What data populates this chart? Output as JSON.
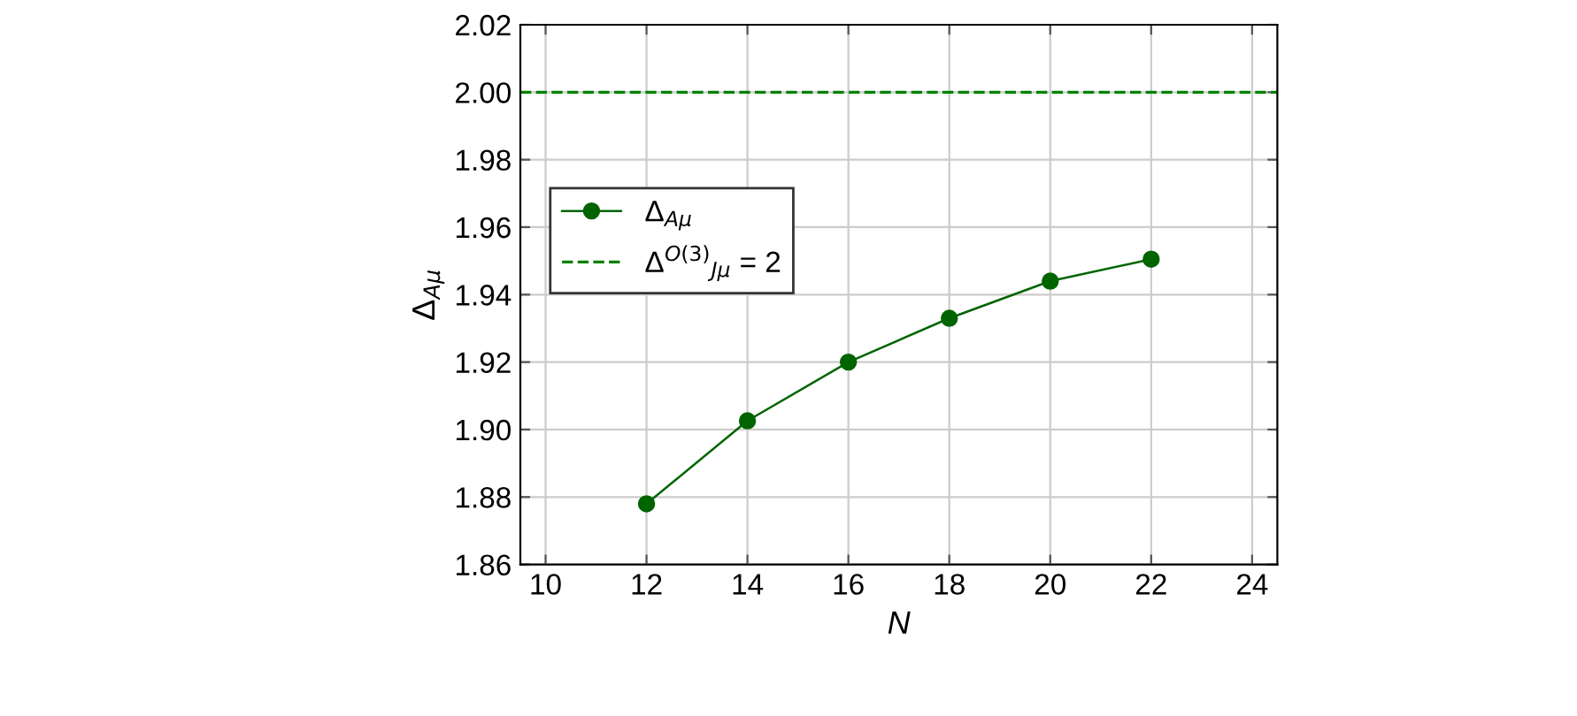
{
  "chart_data": {
    "type": "line",
    "xlabel": "N",
    "ylabel": "Δ$_{Aμ}$",
    "x": [
      12,
      14,
      16,
      18,
      20,
      22
    ],
    "series": [
      {
        "name": "Δ$_{Aμ}$",
        "color": "#006400",
        "values": [
          1.878,
          1.9026,
          1.92,
          1.933,
          1.944,
          1.9505
        ]
      }
    ],
    "ref_lines": [
      {
        "axis": "y",
        "value": 2,
        "label": "Δ$^{O(3)}$$_{Jμ}$ = 2",
        "color": "#008000",
        "line_style": "dashed"
      }
    ],
    "xlim": [
      9.5,
      24.5
    ],
    "xticks": [
      10,
      12,
      14,
      16,
      18,
      20,
      22,
      24
    ],
    "ylim": [
      1.86,
      2.02
    ],
    "yticks": [
      {
        "value": 1.86,
        "label": "1.86"
      },
      {
        "value": 1.88,
        "label": "1.88"
      },
      {
        "value": 1.9,
        "label": "1.90"
      },
      {
        "value": 1.92,
        "label": "1.92"
      },
      {
        "value": 1.94,
        "label": "1.94"
      },
      {
        "value": 1.96,
        "label": "1.96"
      },
      {
        "value": 1.98,
        "label": "1.98"
      },
      {
        "value": 2.0,
        "label": "2.00"
      },
      {
        "value": 2.02,
        "label": "2.02"
      }
    ],
    "grid": true,
    "legend": "left",
    "marker": "circle",
    "line_style": "solid"
  }
}
